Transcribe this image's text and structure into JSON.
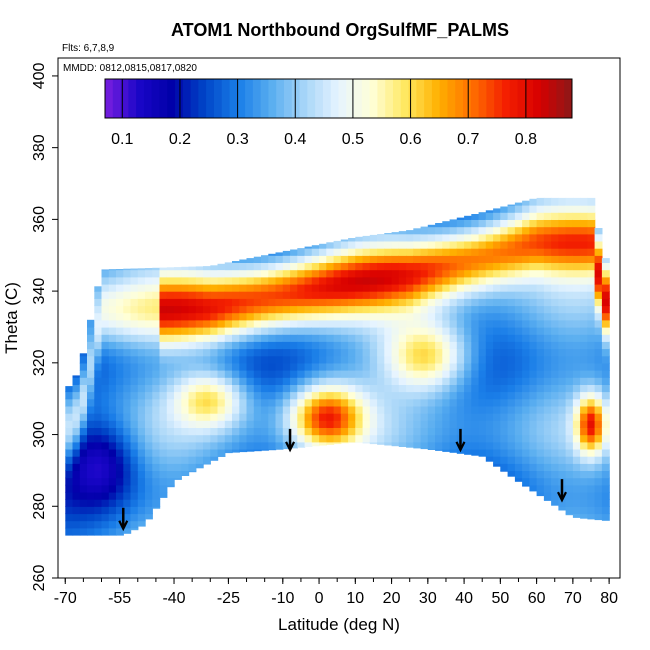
{
  "chart_data": {
    "type": "heatmap",
    "title": "ATOM1 Northbound OrgSulfMF_PALMS",
    "subtitle_flights": "Flts: 6,7,8,9",
    "subtitle_dates": "MMDD: 0812,0815,0817,0820",
    "xlabel": "Latitude (deg N)",
    "ylabel": "Theta (C)",
    "xlim": [
      -72,
      83
    ],
    "ylim": [
      260,
      405
    ],
    "x_ticks": [
      -70,
      -55,
      -40,
      -25,
      -10,
      0,
      10,
      20,
      30,
      40,
      50,
      60,
      70,
      80
    ],
    "y_ticks": [
      260,
      280,
      300,
      320,
      340,
      360,
      380,
      400
    ],
    "colorbar": {
      "ticks": [
        "0.1",
        "0.2",
        "0.3",
        "0.4",
        "0.5",
        "0.6",
        "0.7",
        "0.8"
      ],
      "range": [
        0.07,
        0.88
      ],
      "colors": [
        "#7a1fe0",
        "#1a06c8",
        "#0000a8",
        "#0046c8",
        "#1a7ee8",
        "#5aaef0",
        "#a8d6f8",
        "#e6f4ff",
        "#ffffd8",
        "#ffe860",
        "#ffb000",
        "#ff7000",
        "#f42000",
        "#d80000",
        "#8c1818"
      ]
    },
    "colorbar_position": "top",
    "arrow_markers_lat": [
      -54,
      -8,
      39,
      67
    ],
    "arrow_markers_theta": [
      274,
      296,
      296,
      282
    ],
    "grid": false
  }
}
